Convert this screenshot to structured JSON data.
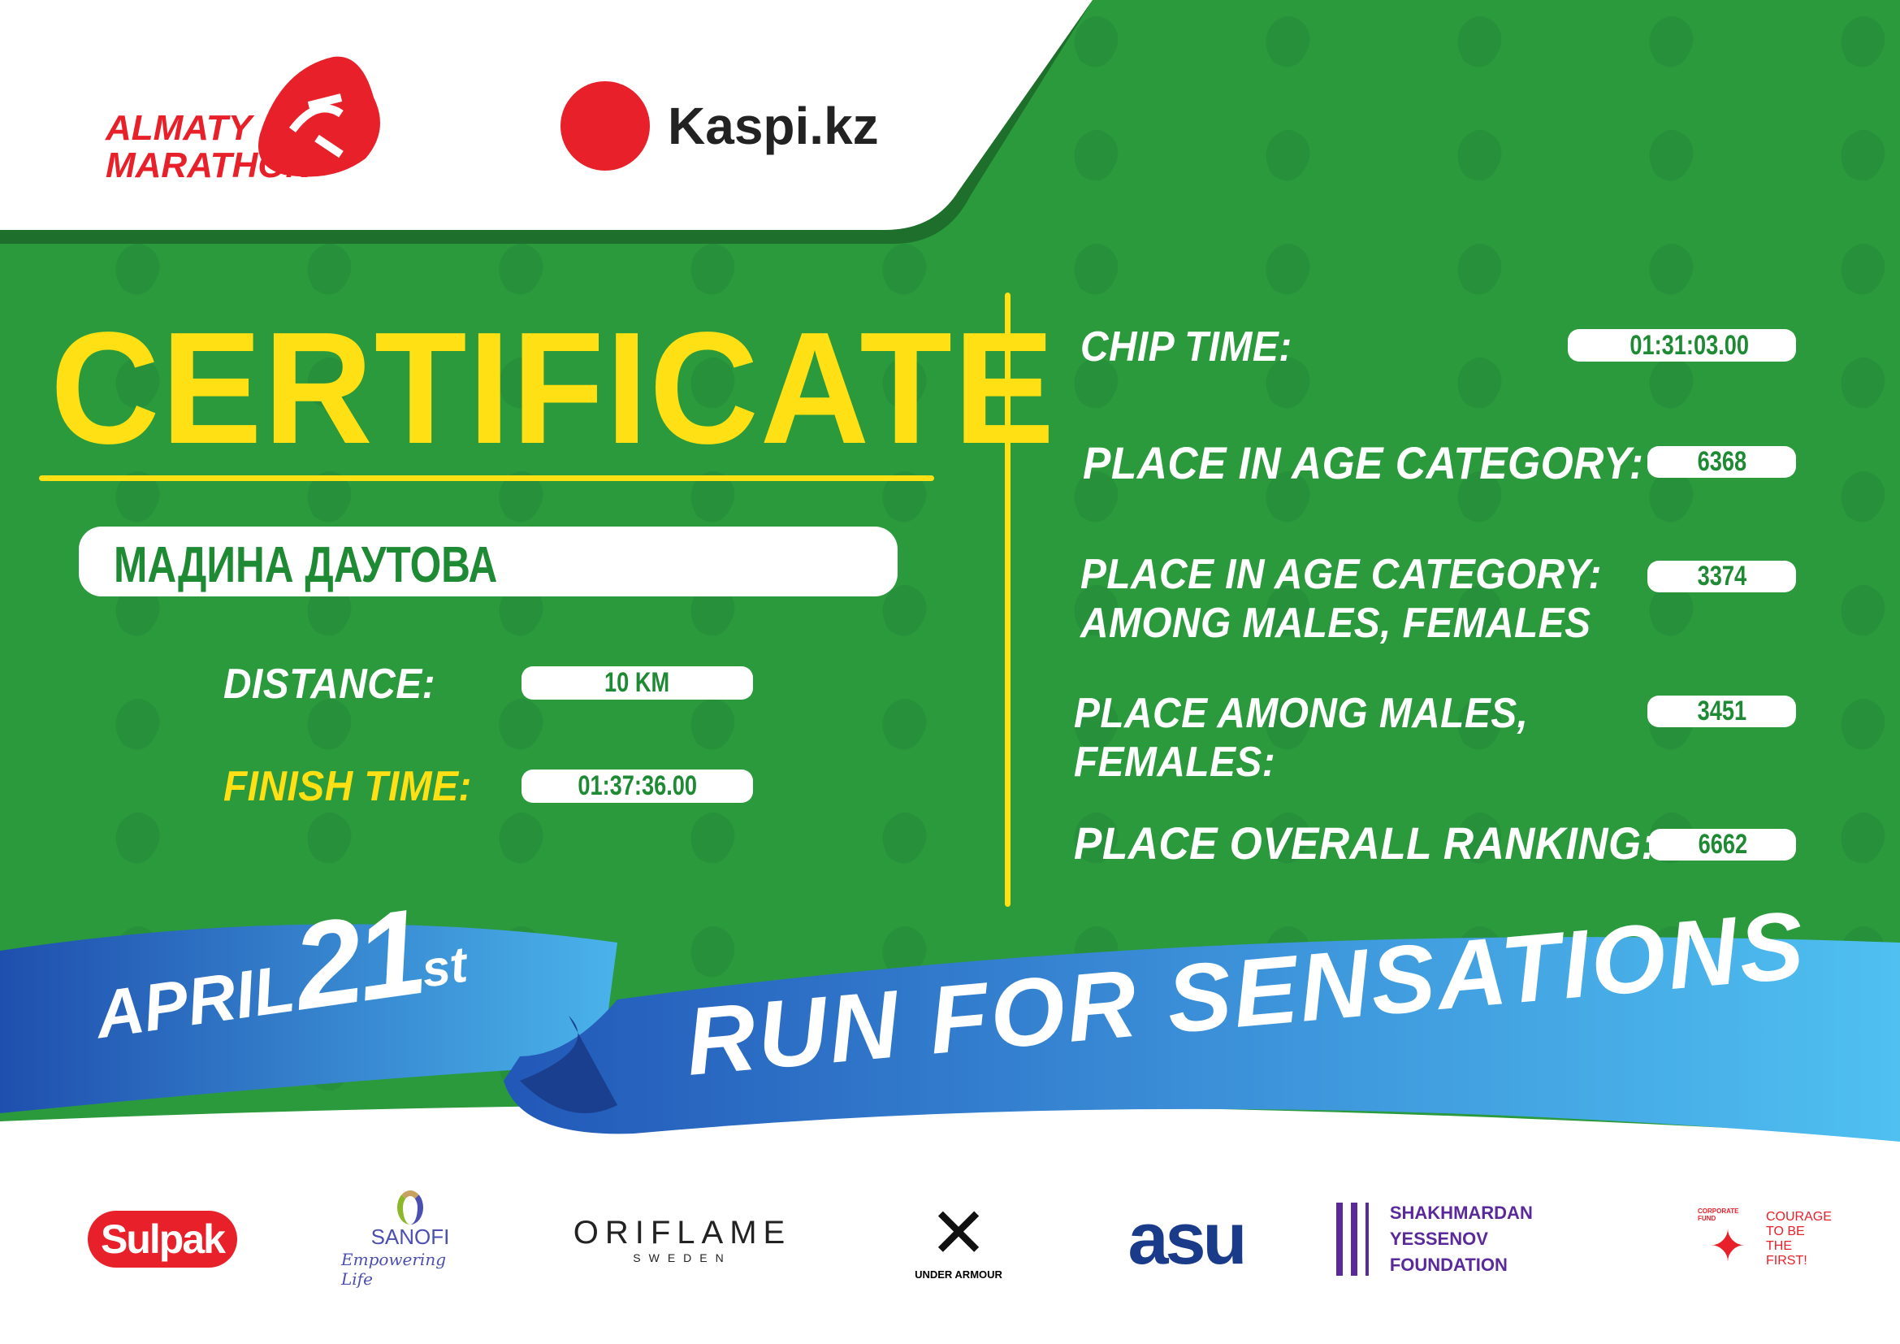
{
  "header": {
    "event_logo": "ALMATY MARATHON",
    "sponsor_logo": "Kaspi.kz"
  },
  "title": "CERTIFICATE",
  "participant_name": "МАДИНА ДАУТОВА",
  "left_fields": [
    {
      "label": "DISTANCE:",
      "value": "10 KM"
    },
    {
      "label": "FINISH TIME:",
      "value": "01:37:36.00"
    }
  ],
  "right_fields": [
    {
      "label": "CHIP TIME:",
      "value": "01:31:03.00"
    },
    {
      "label": "PLACE IN AGE CATEGORY:",
      "value": "6368"
    },
    {
      "label": "PLACE IN AGE CATEGORY:",
      "label2": "AMONG MALES, FEMALES",
      "value": "3374"
    },
    {
      "label": "PLACE AMONG MALES,",
      "label2": "FEMALES:",
      "value": "3451"
    },
    {
      "label": "PLACE OVERALL RANKING:",
      "value": "6662"
    }
  ],
  "ribbon": {
    "month": "APRIL",
    "day": "21",
    "suffix": "st",
    "slogan": "RUN FOR SENSATIONS"
  },
  "watermark": "ALMATY MARATHON",
  "sponsors": [
    {
      "name": "Sulpak"
    },
    {
      "name": "SANOFI",
      "tagline": "Empowering Life"
    },
    {
      "name": "ORIFLAME",
      "tagline": "SWEDEN"
    },
    {
      "name": "UNDER ARMOUR"
    },
    {
      "name": "asu"
    },
    {
      "name": "SHAKHMARDAN YESSENOV",
      "tagline": "FOUNDATION"
    },
    {
      "name": "COURAGE",
      "tagline": "TO BE",
      "tagline2": "THE FIRST!",
      "badge": "CORPORATE FUND"
    }
  ],
  "colors": {
    "green": "#2a9a3c",
    "yellow": "#ffe014",
    "red": "#e8202a",
    "blue": "#2f7fd0"
  }
}
